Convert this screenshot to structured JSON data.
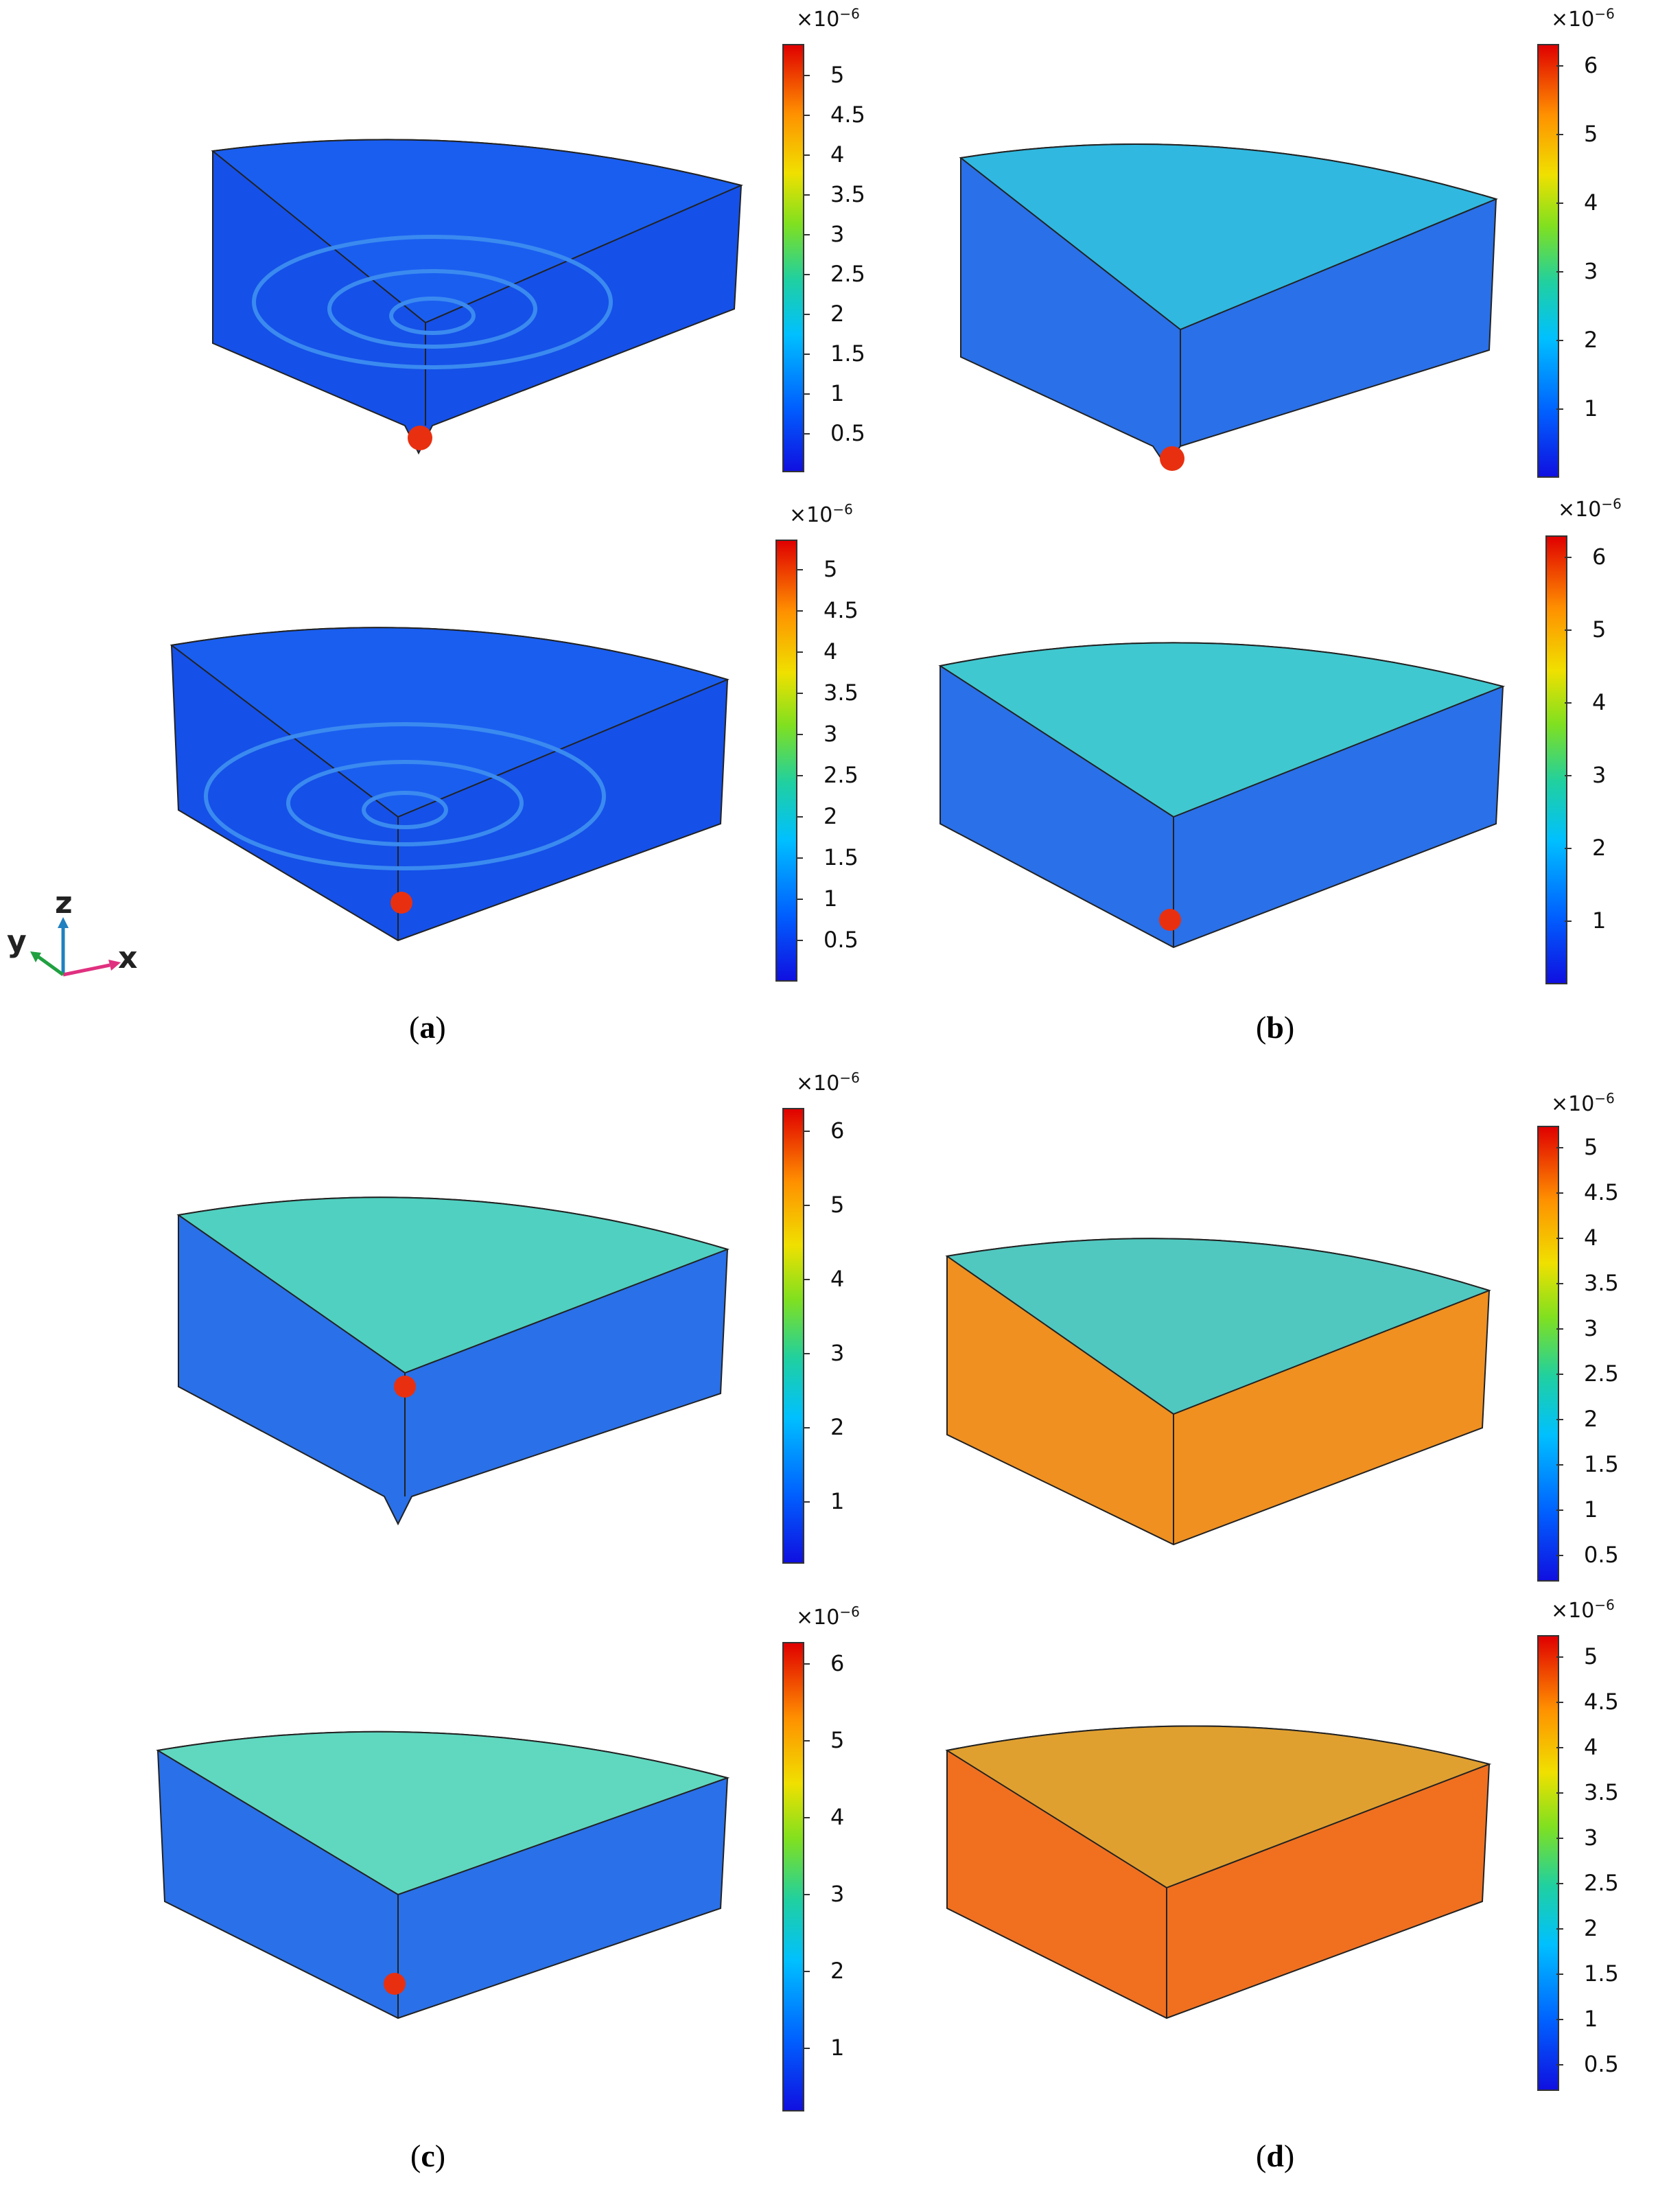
{
  "colorbars": [
    {
      "exponent_base": "×10",
      "exponent_power": "−6",
      "ticks": [
        "5",
        "4.5",
        "4",
        "3.5",
        "3",
        "2.5",
        "2",
        "1.5",
        "1",
        "0.5"
      ]
    },
    {
      "exponent_base": "×10",
      "exponent_power": "−6",
      "ticks": [
        "6",
        "5",
        "4",
        "3",
        "2",
        "1"
      ]
    },
    {
      "exponent_base": "×10",
      "exponent_power": "−6",
      "ticks": [
        "5",
        "4.5",
        "4",
        "3.5",
        "3",
        "2.5",
        "2",
        "1.5",
        "1",
        "0.5"
      ]
    },
    {
      "exponent_base": "×10",
      "exponent_power": "−6",
      "ticks": [
        "6",
        "5",
        "4",
        "3",
        "2",
        "1"
      ]
    },
    {
      "exponent_base": "×10",
      "exponent_power": "−6",
      "ticks": [
        "6",
        "5",
        "4",
        "3",
        "2",
        "1"
      ]
    },
    {
      "exponent_base": "×10",
      "exponent_power": "−6",
      "ticks": [
        "5",
        "4.5",
        "4",
        "3.5",
        "3",
        "2.5",
        "2",
        "1.5",
        "1",
        "0.5"
      ]
    },
    {
      "exponent_base": "×10",
      "exponent_power": "−6",
      "ticks": [
        "6",
        "5",
        "4",
        "3",
        "2",
        "1"
      ]
    },
    {
      "exponent_base": "×10",
      "exponent_power": "−6",
      "ticks": [
        "5",
        "4.5",
        "4",
        "3.5",
        "3",
        "2.5",
        "2",
        "1.5",
        "1",
        "0.5"
      ]
    }
  ],
  "captions": [
    "a",
    "b",
    "c",
    "d"
  ],
  "axes": {
    "z": "z",
    "y": "y",
    "x": "x"
  },
  "colors": {
    "low": "#1010e0",
    "mid": "#20d0a0",
    "high": "#e00000"
  }
}
